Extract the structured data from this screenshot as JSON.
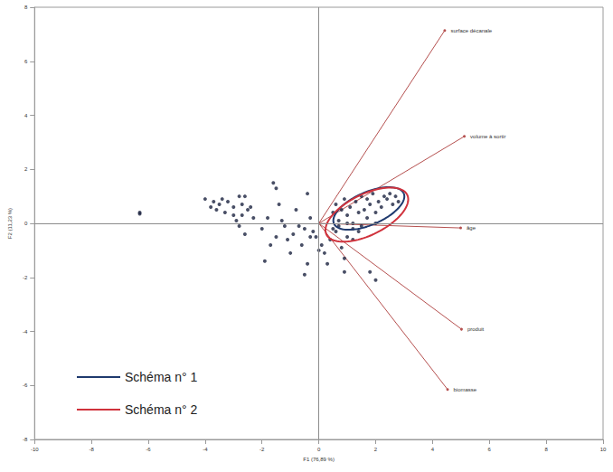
{
  "chart_data": {
    "type": "scatter",
    "x_label": "F1 (76,89 %)",
    "y_label": "F2 (11,23 %)",
    "xlim": [
      -10,
      10
    ],
    "xticks": [
      -10,
      -8,
      -6,
      -4,
      -2,
      0,
      2,
      4,
      6,
      8,
      10
    ],
    "ylim": [
      -8,
      8
    ],
    "yticks": [
      -8,
      -6,
      -4,
      -2,
      0,
      2,
      4,
      6,
      8
    ],
    "grid": false,
    "legend": "lower left",
    "points": {
      "color": "#1c2340",
      "marker": "circle",
      "x": [
        -6.3,
        -6.3,
        -4.0,
        -3.8,
        -3.7,
        -3.6,
        -3.5,
        -3.4,
        -3.3,
        -3.2,
        -3.0,
        -3.0,
        -2.9,
        -2.8,
        -2.8,
        -2.7,
        -2.7,
        -2.6,
        -2.6,
        -2.5,
        -2.4,
        -2.3,
        -2.0,
        -1.9,
        -1.8,
        -1.7,
        -1.6,
        -1.5,
        -1.5,
        -1.4,
        -1.3,
        -1.2,
        -1.1,
        -1.0,
        -0.9,
        -0.8,
        -0.7,
        -0.6,
        -0.5,
        -0.5,
        -0.4,
        -0.4,
        -0.3,
        -0.3,
        -0.2,
        -0.1,
        0.0,
        0.1,
        0.2,
        0.3,
        0.4,
        0.5,
        0.6,
        0.8,
        0.9,
        0.9,
        1.0,
        1.2,
        1.4,
        1.8,
        2.0,
        0.5,
        0.6,
        0.7,
        0.8,
        0.9,
        1.0,
        1.1,
        1.2,
        1.3,
        1.4,
        1.5,
        1.6,
        1.7,
        1.8,
        1.9,
        2.0,
        2.1,
        2.2,
        2.3,
        2.4,
        2.5,
        2.6,
        2.7,
        2.8,
        1.2,
        1.5,
        1.0,
        0.7,
        2.0,
        1.7
      ],
      "y": [
        0.4,
        0.35,
        0.9,
        0.6,
        0.8,
        0.5,
        0.7,
        0.9,
        0.4,
        0.8,
        0.6,
        0.3,
        0.1,
        1.0,
        -0.1,
        0.7,
        0.3,
        1.0,
        -0.4,
        0.5,
        0.6,
        0.2,
        -0.2,
        -1.4,
        0.2,
        -0.8,
        1.5,
        1.3,
        -0.5,
        0.7,
        0.1,
        -0.1,
        -0.6,
        -1.1,
        -0.4,
        0.5,
        -0.1,
        -0.8,
        -0.2,
        -1.9,
        -1.5,
        1.1,
        -0.5,
        0.2,
        -0.3,
        -0.5,
        -1.0,
        -0.8,
        -1.1,
        -1.5,
        -0.6,
        -0.2,
        -0.3,
        -0.9,
        -1.3,
        -1.8,
        -0.5,
        -0.6,
        -0.3,
        -1.8,
        -2.1,
        0.4,
        0.7,
        0.1,
        0.5,
        0.9,
        0.3,
        0.6,
        0.0,
        0.8,
        0.4,
        1.0,
        0.5,
        0.2,
        0.7,
        1.1,
        0.4,
        0.8,
        0.6,
        1.0,
        0.9,
        1.1,
        0.7,
        1.0,
        0.8,
        -0.2,
        -0.1,
        0.0,
        -0.1,
        0.0,
        0.9
      ]
    },
    "vector_color": "#b5504f",
    "vectors": [
      {
        "label": "surface décanale",
        "x": 4.43,
        "y": 7.14
      },
      {
        "label": "volume à sortir",
        "x": 5.12,
        "y": 3.22
      },
      {
        "label": "âge",
        "x": 4.99,
        "y": -0.17
      },
      {
        "label": "produit",
        "x": 5.02,
        "y": -3.92
      },
      {
        "label": "biomasse",
        "x": 4.53,
        "y": -6.15
      }
    ],
    "ellipses": [
      {
        "name": "Schéma n° 1",
        "color": "#1f3a6e",
        "center": [
          1.76,
          0.55
        ],
        "radii": [
          1.35,
          0.6
        ],
        "angle": 25
      },
      {
        "name": "Schéma n° 2",
        "color": "#d0323c",
        "center": [
          1.69,
          0.32
        ],
        "radii": [
          1.6,
          0.75
        ],
        "angle": 28
      }
    ]
  }
}
